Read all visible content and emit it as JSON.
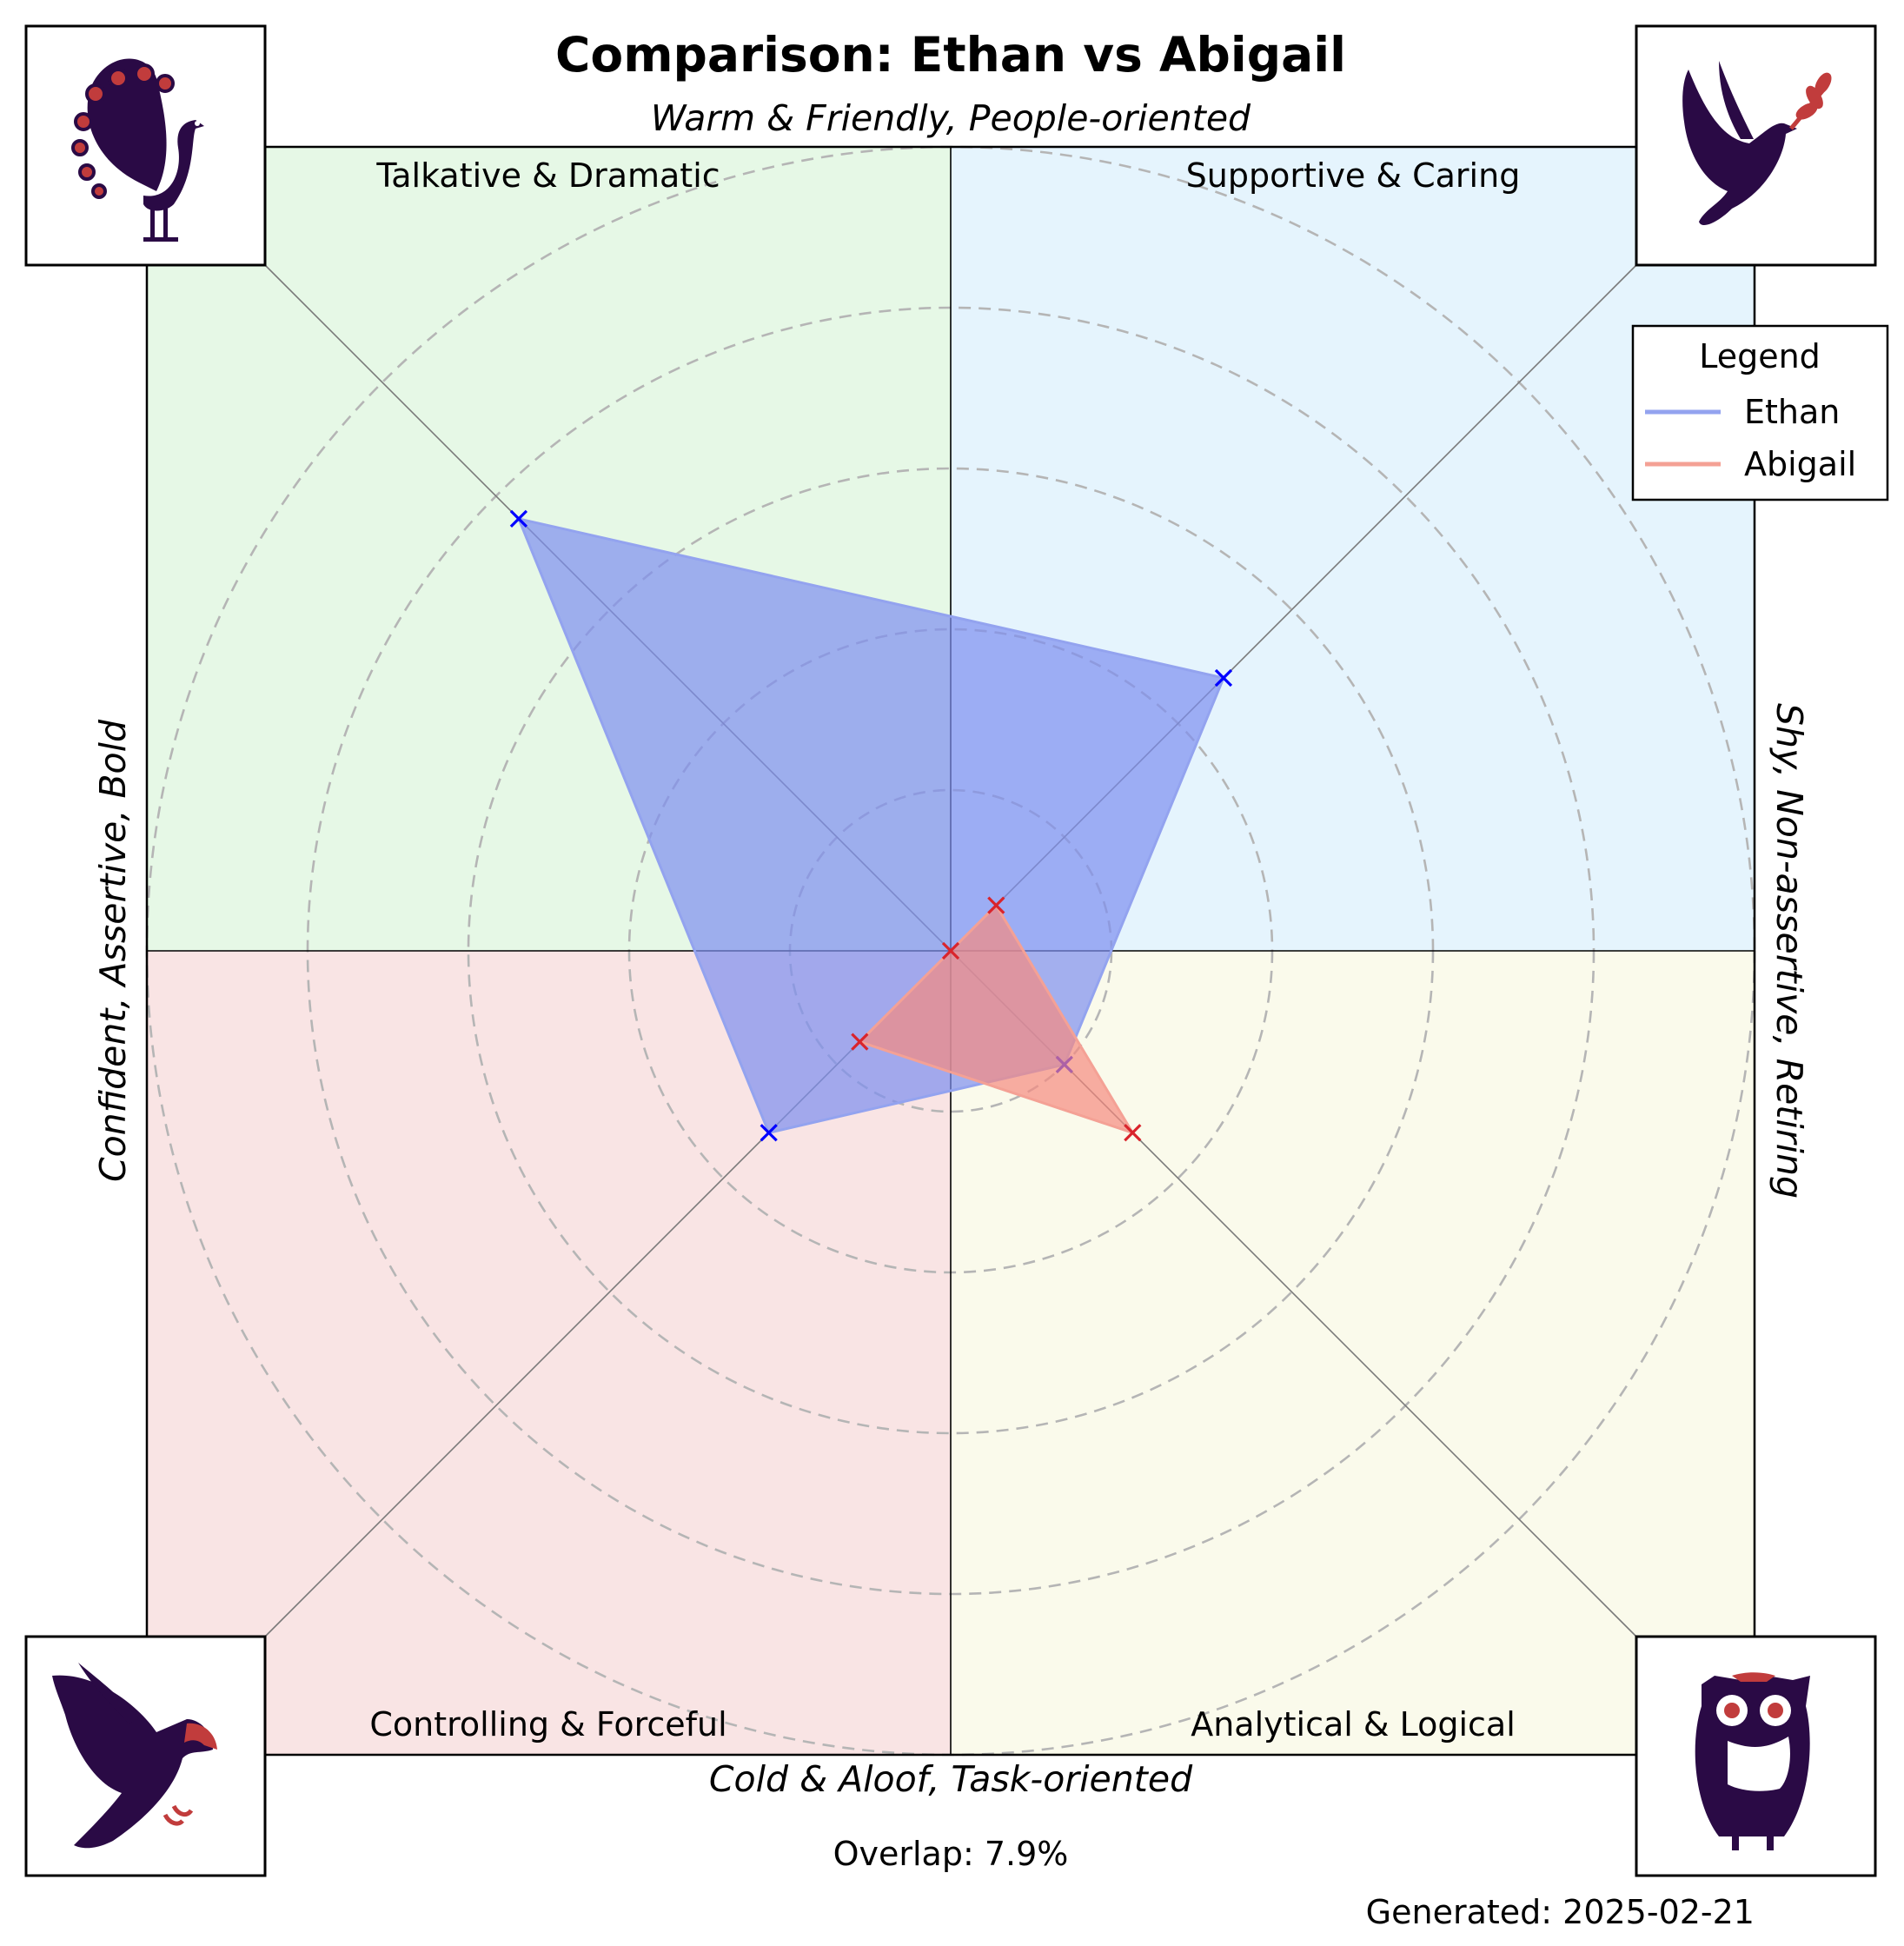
{
  "chart_data": {
    "type": "radar",
    "title": "Comparison: Ethan vs Abigail",
    "axis_labels": {
      "top": "Warm & Friendly, People-oriented",
      "bottom": "Cold & Aloof, Task-oriented",
      "left": "Confident, Assertive, Bold",
      "right": "Shy, Non-assertive, Retiring"
    },
    "quadrants": [
      {
        "id": "talkative",
        "label": "Talkative & Dramatic",
        "color": "#e6f8e6",
        "icon": "peacock-icon"
      },
      {
        "id": "supportive",
        "label": "Supportive & Caring",
        "color": "#e5f4fd",
        "icon": "dove-icon"
      },
      {
        "id": "controlling",
        "label": "Controlling & Forceful",
        "color": "#f9e4e4",
        "icon": "eagle-icon"
      },
      {
        "id": "analytical",
        "label": "Analytical & Logical",
        "color": "#fafaeb",
        "icon": "owl-icon"
      }
    ],
    "axes_order": [
      "Talkative & Dramatic",
      "Supportive & Caring",
      "Analytical & Logical",
      "Controlling & Forceful"
    ],
    "rlim": [
      0,
      5
    ],
    "ring_values": [
      1,
      2,
      3,
      4,
      5
    ],
    "grid": true,
    "series": [
      {
        "name": "Ethan",
        "color": "#0000ff",
        "fill": "#7d8ff0",
        "line": "#93a3ef",
        "values": {
          "Talkative & Dramatic": 3.8,
          "Supportive & Caring": 2.4,
          "Analytical & Logical": 1.0,
          "Controlling & Forceful": 1.6
        }
      },
      {
        "name": "Abigail",
        "color": "#d9242c",
        "fill": "#f58a80",
        "line": "#f4a195",
        "values": {
          "Talkative & Dramatic": 0.0,
          "Supportive & Caring": 0.4,
          "Analytical & Logical": 1.6,
          "Controlling & Forceful": 0.8
        }
      }
    ],
    "legend": {
      "title": "Legend",
      "placement": "top-right"
    },
    "annotations": {
      "overlap": "Overlap: 7.9%",
      "generated": "Generated: 2025-02-21"
    }
  }
}
